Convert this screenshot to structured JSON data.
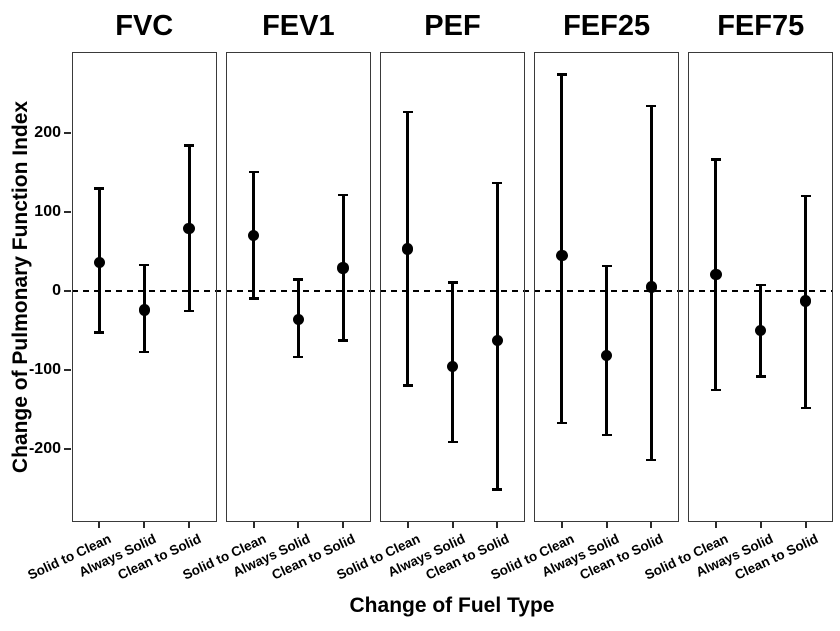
{
  "figure": {
    "background": "#ffffff",
    "ink_color": "#000000",
    "border_color": "#3a3a3a"
  },
  "chart_data": {
    "type": "scatter",
    "subtype": "point-range (faceted forest plot, vertical error bars)",
    "title": "",
    "xlabel": "Change of Fuel Type",
    "ylabel": "Change of Pulmonary Function Index",
    "categories": [
      "Solid to Clean",
      "Always Solid",
      "Clean to Solid"
    ],
    "yticks": [
      200,
      100,
      0,
      -100,
      -200
    ],
    "ylim": [
      -293,
      303
    ],
    "grid": "off",
    "reference_line": {
      "y": 0,
      "style": "dashed"
    },
    "panels": [
      {
        "title": "FVC",
        "points": [
          {
            "category": "Solid to Clean",
            "value": 36,
            "lo": -53,
            "hi": 130
          },
          {
            "category": "Always Solid",
            "value": -24,
            "lo": -78,
            "hi": 33
          },
          {
            "category": "Clean to Solid",
            "value": 79,
            "lo": -26,
            "hi": 185
          }
        ]
      },
      {
        "title": "FEV1",
        "points": [
          {
            "category": "Solid to Clean",
            "value": 70,
            "lo": -10,
            "hi": 151
          },
          {
            "category": "Always Solid",
            "value": -36,
            "lo": -84,
            "hi": 15
          },
          {
            "category": "Clean to Solid",
            "value": 29,
            "lo": -63,
            "hi": 122
          }
        ]
      },
      {
        "title": "PEF",
        "points": [
          {
            "category": "Solid to Clean",
            "value": 53,
            "lo": -120,
            "hi": 227
          },
          {
            "category": "Always Solid",
            "value": -96,
            "lo": -192,
            "hi": 11
          },
          {
            "category": "Clean to Solid",
            "value": -63,
            "lo": -252,
            "hi": 137
          }
        ]
      },
      {
        "title": "FEF25",
        "points": [
          {
            "category": "Solid to Clean",
            "value": 45,
            "lo": -168,
            "hi": 275
          },
          {
            "category": "Always Solid",
            "value": -82,
            "lo": -183,
            "hi": 32
          },
          {
            "category": "Clean to Solid",
            "value": 5,
            "lo": -215,
            "hi": 235
          }
        ]
      },
      {
        "title": "FEF75",
        "points": [
          {
            "category": "Solid to Clean",
            "value": 21,
            "lo": -126,
            "hi": 167
          },
          {
            "category": "Always Solid",
            "value": -50,
            "lo": -109,
            "hi": 8
          },
          {
            "category": "Clean to Solid",
            "value": -13,
            "lo": -149,
            "hi": 121
          }
        ]
      }
    ]
  }
}
